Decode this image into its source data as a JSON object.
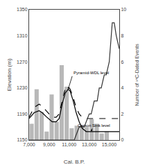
{
  "chart_data": {
    "type": "bar",
    "xlabel": "Cal. B.P.",
    "ylabel": "Elevation (m)",
    "y2label": "Number of ¹⁴C-Dated Events",
    "xlim": [
      7000,
      16000
    ],
    "xticks": [
      {
        "value": 7000,
        "label": "7,000"
      },
      {
        "value": 9000,
        "label": "9,000"
      },
      {
        "value": 11000,
        "label": "11,000"
      },
      {
        "value": 13000,
        "label": "13,000"
      },
      {
        "value": 15000,
        "label": "15,000"
      }
    ],
    "ylim": [
      1150,
      1350
    ],
    "yticks": [
      1150,
      1190,
      1230,
      1270,
      1310,
      1350
    ],
    "y2lim": [
      0,
      10
    ],
    "y2ticks": [
      0,
      2,
      4,
      6,
      8,
      10
    ],
    "grid": false,
    "series": [
      {
        "type": "bar",
        "color": "#b8b8b8",
        "x": [
          7250,
          7750,
          8250,
          8750,
          9250,
          9750,
          10250,
          10750,
          11250,
          11750,
          12250,
          12750,
          13250,
          13750,
          14250,
          14750
        ],
        "values": [
          1175,
          1228,
          1193,
          1163,
          1220,
          1178,
          1265,
          1232,
          1168,
          1172,
          1172,
          1170,
          1182,
          1175,
          1160,
          1163
        ]
      },
      {
        "type": "line",
        "color": "#000000",
        "line_style": "dashed",
        "x": [
          7000,
          7500,
          8000,
          8300,
          8700,
          9000,
          9300,
          9700,
          10000,
          10300,
          10600,
          10900,
          11100,
          11400,
          11700,
          12000,
          12300,
          12700,
          13000,
          13300,
          13700,
          14000,
          14500,
          15000,
          15500,
          16000
        ],
        "values": [
          1185,
          1200,
          1205,
          1202,
          1195,
          1190,
          1185,
          1185,
          1190,
          1210,
          1228,
          1232,
          1228,
          1215,
          1200,
          1190,
          1185,
          1183,
          1183,
          1183,
          1183,
          1183,
          1183,
          1183,
          1183,
          1183
        ]
      },
      {
        "type": "line",
        "color": "#000000",
        "line_style": "solid",
        "x": [
          7000,
          7500,
          8000,
          8300,
          8700,
          9000,
          9300,
          9700,
          10000,
          10300,
          10600,
          10900,
          11100,
          11400,
          11700,
          12000,
          12300,
          12700,
          13000,
          13300,
          13700,
          14000,
          14500,
          15000,
          15500,
          16000
        ],
        "values": [
          1183,
          1192,
          1195,
          1192,
          1186,
          1182,
          1178,
          1178,
          1183,
          1205,
          1222,
          1228,
          1225,
          1210,
          1192,
          1178,
          1168,
          1163,
          1163,
          1163,
          1163,
          1163,
          1163,
          1163,
          1163,
          1163
        ]
      },
      {
        "type": "line",
        "axis": "y2",
        "color": "#333333",
        "line_style": "solid",
        "x": [
          7000,
          7500,
          8000,
          8500,
          9000,
          9500,
          10000,
          10500,
          11000,
          11500,
          12000,
          12500,
          13000,
          13200,
          13500,
          13800,
          14000,
          14200,
          14500,
          14700,
          15000,
          15300,
          15500,
          15700,
          16000
        ],
        "values": [
          0,
          0,
          0,
          0,
          0,
          0,
          0,
          0,
          0,
          0,
          1,
          1,
          2,
          2,
          3,
          3,
          4,
          4,
          5,
          5,
          6,
          9,
          9,
          8,
          7
        ]
      }
    ],
    "annotations": [
      {
        "text": "Pyramid-WDL level",
        "x": 10900,
        "y": 1228,
        "text_x": 11300,
        "text_y": 1248
      },
      {
        "text": "Carson Sink level",
        "x": 13200,
        "y": 1163,
        "text_x": 13500,
        "text_y": 1178
      }
    ]
  }
}
